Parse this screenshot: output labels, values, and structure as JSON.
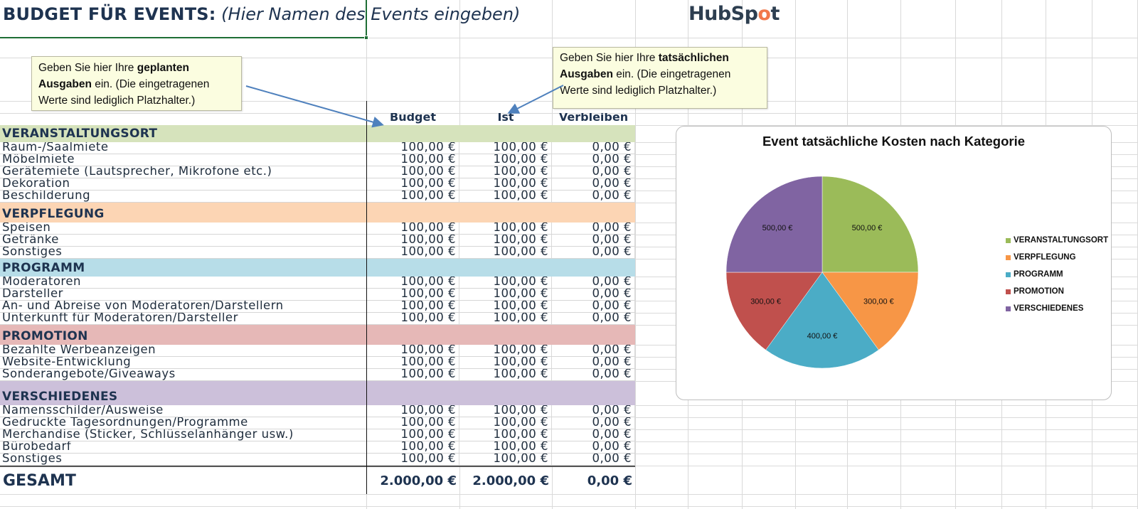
{
  "sheet": {
    "title_bold": "BUDGET FÜR EVENTS:",
    "title_italic": " (Hier Namen des Events eingeben)",
    "logo": {
      "text_a": "HubSp",
      "text_spot": "o",
      "text_b": "t",
      "brand_color": "#f1784b",
      "text_color": "#2d3e50"
    },
    "columns": {
      "budget": "Budget",
      "ist": "Ist",
      "verbleiben": "Verbleiben"
    },
    "notes": {
      "planned": {
        "pre": "Geben Sie hier Ihre ",
        "bold1": "geplanten",
        "bold2": "Ausgaben",
        "post": " ein. (Die eingetragenen Werte sind lediglich Platzhalter.)"
      },
      "actual": {
        "pre": "Geben Sie hier Ihre ",
        "bold1": "tatsächlichen",
        "bold2": "Ausgaben",
        "post": " ein. (Die eingetragenen Werte sind lediglich Platzhalter.)"
      }
    },
    "categories": [
      {
        "name": "VERANSTALTUNGSORT",
        "color": "#d6e3bc",
        "items": [
          {
            "label": "Raum-/Saalmiete",
            "budget": "100,00 €",
            "ist": "100,00 €",
            "rest": "0,00 €"
          },
          {
            "label": "Möbelmiete",
            "budget": "100,00 €",
            "ist": "100,00 €",
            "rest": "0,00 €"
          },
          {
            "label": "Gerätemiete (Lautsprecher, Mikrofone etc.)",
            "budget": "100,00 €",
            "ist": "100,00 €",
            "rest": "0,00 €"
          },
          {
            "label": "Dekoration",
            "budget": "100,00 €",
            "ist": "100,00 €",
            "rest": "0,00 €"
          },
          {
            "label": "Beschilderung",
            "budget": "100,00 €",
            "ist": "100,00 €",
            "rest": "0,00 €"
          }
        ]
      },
      {
        "name": "VERPFLEGUNG",
        "color": "#fcd5b4",
        "items": [
          {
            "label": "Speisen",
            "budget": "100,00 €",
            "ist": "100,00 €",
            "rest": "0,00 €"
          },
          {
            "label": "Getränke",
            "budget": "100,00 €",
            "ist": "100,00 €",
            "rest": "0,00 €"
          },
          {
            "label": "Sonstiges",
            "budget": "100,00 €",
            "ist": "100,00 €",
            "rest": "0,00 €"
          }
        ]
      },
      {
        "name": "PROGRAMM",
        "color": "#b7dde8",
        "items": [
          {
            "label": "Moderatoren",
            "budget": "100,00 €",
            "ist": "100,00 €",
            "rest": "0,00 €"
          },
          {
            "label": "Darsteller",
            "budget": "100,00 €",
            "ist": "100,00 €",
            "rest": "0,00 €"
          },
          {
            "label": "An- und Abreise von Moderatoren/Darstellern",
            "budget": "100,00 €",
            "ist": "100,00 €",
            "rest": "0,00 €"
          },
          {
            "label": "Unterkunft für Moderatoren/Darsteller",
            "budget": "100,00 €",
            "ist": "100,00 €",
            "rest": "0,00 €"
          }
        ]
      },
      {
        "name": "PROMOTION",
        "color": "#e6b8b7",
        "items": [
          {
            "label": "Bezahlte Werbeanzeigen",
            "budget": "100,00 €",
            "ist": "100,00 €",
            "rest": "0,00 €"
          },
          {
            "label": "Website-Entwicklung",
            "budget": "100,00 €",
            "ist": "100,00 €",
            "rest": "0,00 €"
          },
          {
            "label": "Sonderangebote/Giveaways",
            "budget": "100,00 €",
            "ist": "100,00 €",
            "rest": "0,00 €"
          }
        ]
      },
      {
        "name": "VERSCHIEDENES",
        "color": "#ccc0da",
        "items": [
          {
            "label": "Namensschilder/Ausweise",
            "budget": "100,00 €",
            "ist": "100,00 €",
            "rest": "0,00 €"
          },
          {
            "label": "Gedruckte Tagesordnungen/Programme",
            "budget": "100,00 €",
            "ist": "100,00 €",
            "rest": "0,00 €"
          },
          {
            "label": "Merchandise (Sticker, Schlüsselanhänger usw.)",
            "budget": "100,00 €",
            "ist": "100,00 €",
            "rest": "0,00 €"
          },
          {
            "label": "Bürobedarf",
            "budget": "100,00 €",
            "ist": "100,00 €",
            "rest": "0,00 €"
          },
          {
            "label": "Sonstiges",
            "budget": "100,00 €",
            "ist": "100,00 €",
            "rest": "0,00 €"
          }
        ]
      }
    ],
    "total": {
      "label": "GESAMT",
      "budget": "2.000,00 €",
      "ist": "2.000,00 €",
      "rest": "0,00 €"
    }
  },
  "chart_data": {
    "type": "pie",
    "title": "Event tatsächliche Kosten nach Kategorie",
    "categories": [
      "VERANSTALTUNGSORT",
      "VERPFLEGUNG",
      "PROGRAMM",
      "PROMOTION",
      "VERSCHIEDENES"
    ],
    "values": [
      500,
      300,
      400,
      300,
      500
    ],
    "labels": [
      "500,00 €",
      "300,00 €",
      "400,00 €",
      "300,00 €",
      "500,00 €"
    ],
    "colors": [
      "#9bbb59",
      "#f79646",
      "#4bacc6",
      "#c0504d",
      "#8064a2"
    ],
    "legend_position": "right"
  }
}
